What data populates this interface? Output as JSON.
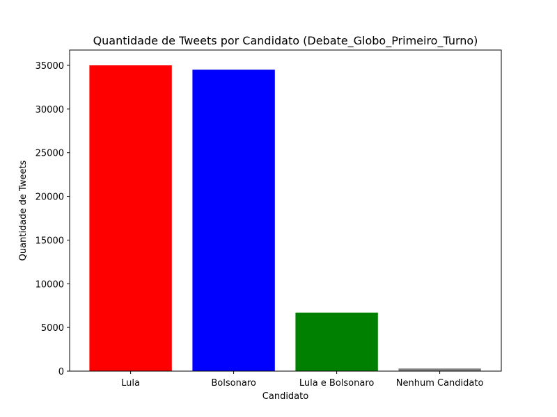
{
  "chart_data": {
    "type": "bar",
    "title": "Quantidade de Tweets por Candidato (Debate_Globo_Primeiro_Turno)",
    "xlabel": "Candidato",
    "ylabel": "Quantidade de Tweets",
    "categories": [
      "Lula",
      "Bolsonaro",
      "Lula e Bolsonaro",
      "Nenhum Candidato"
    ],
    "values": [
      35000,
      34500,
      6700,
      300
    ],
    "colors": [
      "#ff0000",
      "#0000ff",
      "#008000",
      "#808080"
    ],
    "ylim": [
      0,
      36750
    ],
    "yticks": [
      0,
      5000,
      10000,
      15000,
      20000,
      25000,
      30000,
      35000
    ],
    "grid": false,
    "legend": "none"
  }
}
